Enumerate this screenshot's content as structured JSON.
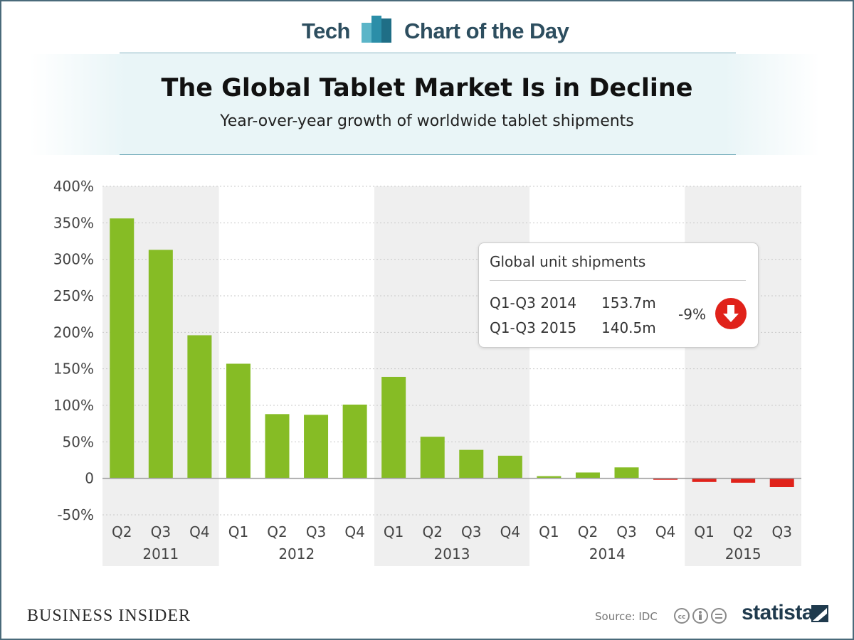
{
  "banner": {
    "left_text": "Tech",
    "right_text": "Chart of the Day"
  },
  "header": {
    "title": "The Global Tablet Market Is in Decline",
    "subtitle": "Year-over-year growth of worldwide tablet shipments"
  },
  "callout": {
    "heading": "Global unit shipments",
    "rows": [
      {
        "period": "Q1-Q3 2014",
        "value": "153.7m"
      },
      {
        "period": "Q1-Q3 2015",
        "value": "140.5m"
      }
    ],
    "change": "-9%",
    "icon": "arrow-down-icon"
  },
  "footer": {
    "brand": "BUSINESS INSIDER",
    "source": "Source: IDC",
    "logo": "statista"
  },
  "colors": {
    "positive": "#86bc25",
    "negative": "#e0221a",
    "band": "#efefef",
    "accent": "#2d4e5f"
  },
  "chart_data": {
    "type": "bar",
    "title": "The Global Tablet Market Is in Decline",
    "subtitle": "Year-over-year growth of worldwide tablet shipments",
    "xlabel": "",
    "ylabel": "",
    "ylim": [
      -50,
      400
    ],
    "yticks": [
      -50,
      0,
      50,
      100,
      150,
      200,
      250,
      300,
      350,
      400
    ],
    "ytick_labels": [
      "-50%",
      "0",
      "50%",
      "100%",
      "150%",
      "200%",
      "250%",
      "300%",
      "350%",
      "400%"
    ],
    "grid": true,
    "categories": [
      "Q2",
      "Q3",
      "Q4",
      "Q1",
      "Q2",
      "Q3",
      "Q4",
      "Q1",
      "Q2",
      "Q3",
      "Q4",
      "Q1",
      "Q2",
      "Q3",
      "Q4",
      "Q1",
      "Q2",
      "Q3"
    ],
    "years": [
      {
        "label": "2011",
        "count": 3,
        "shaded": true
      },
      {
        "label": "2012",
        "count": 4,
        "shaded": false
      },
      {
        "label": "2013",
        "count": 4,
        "shaded": true
      },
      {
        "label": "2014",
        "count": 4,
        "shaded": false
      },
      {
        "label": "2015",
        "count": 3,
        "shaded": true
      }
    ],
    "values": [
      356,
      313,
      196,
      157,
      88,
      87,
      101,
      139,
      57,
      39,
      31,
      3,
      8,
      15,
      -2,
      -5,
      -6,
      -12
    ],
    "units": "%"
  }
}
